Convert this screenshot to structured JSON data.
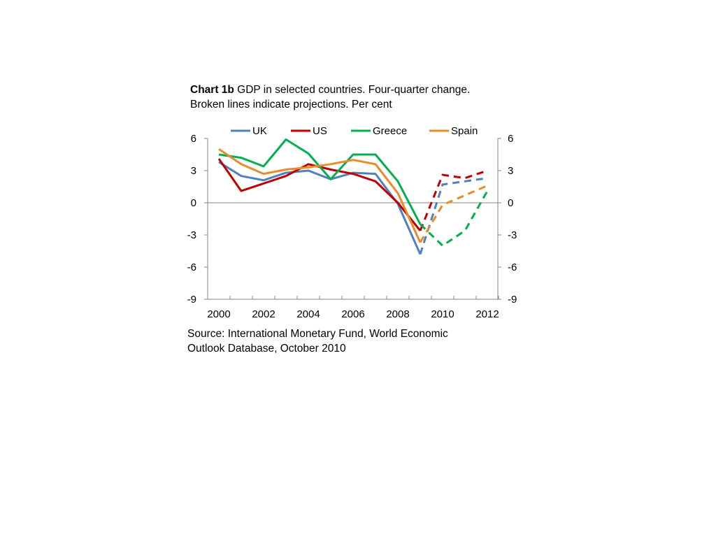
{
  "title": {
    "bold": "Chart 1b",
    "rest": " GDP in selected countries. Four-quarter change.",
    "line2": "Broken lines indicate projections. Per cent"
  },
  "source": {
    "line1": "Source:  International Monetary Fund, World Economic",
    "line2": "Outlook Database, October 2010"
  },
  "chart_data": {
    "type": "line",
    "ylim": [
      -9,
      6
    ],
    "yticks": [
      "6",
      "3",
      "0",
      "-3",
      "-6",
      "-9"
    ],
    "yticks_right": [
      "6",
      "3",
      "0",
      "-3",
      "-6",
      "-9"
    ],
    "xlim": [
      2000,
      2012
    ],
    "xtick_labels": [
      "2000",
      "2002",
      "2004",
      "2006",
      "2008",
      "2010",
      "2012"
    ],
    "grid": false,
    "legend_position": "top",
    "projection_note": "dashed segments are projections",
    "series": [
      {
        "name": "UK",
        "color": "#4f81bd",
        "actual": [
          [
            2000,
            3.8
          ],
          [
            2001,
            2.5
          ],
          [
            2002,
            2.1
          ],
          [
            2003,
            2.8
          ],
          [
            2004,
            3.0
          ],
          [
            2005,
            2.2
          ],
          [
            2006,
            2.8
          ],
          [
            2007,
            2.7
          ],
          [
            2008,
            -0.1
          ],
          [
            2009,
            -4.8
          ]
        ],
        "projection": [
          [
            2009,
            -4.8
          ],
          [
            2010,
            1.7
          ],
          [
            2011,
            2.0
          ],
          [
            2012,
            2.3
          ]
        ]
      },
      {
        "name": "US",
        "color": "#c00000",
        "actual": [
          [
            2000,
            4.1
          ],
          [
            2001,
            1.1
          ],
          [
            2002,
            1.8
          ],
          [
            2003,
            2.5
          ],
          [
            2004,
            3.6
          ],
          [
            2005,
            3.1
          ],
          [
            2006,
            2.7
          ],
          [
            2007,
            2.0
          ],
          [
            2008,
            0.0
          ],
          [
            2009,
            -2.6
          ]
        ],
        "projection": [
          [
            2009,
            -2.6
          ],
          [
            2010,
            2.6
          ],
          [
            2011,
            2.3
          ],
          [
            2012,
            3.0
          ]
        ]
      },
      {
        "name": "Greece",
        "color": "#00b050",
        "actual": [
          [
            2000,
            4.5
          ],
          [
            2001,
            4.2
          ],
          [
            2002,
            3.4
          ],
          [
            2003,
            5.9
          ],
          [
            2004,
            4.6
          ],
          [
            2005,
            2.2
          ],
          [
            2006,
            4.5
          ],
          [
            2007,
            4.5
          ],
          [
            2008,
            2.0
          ],
          [
            2009,
            -2.0
          ]
        ],
        "projection": [
          [
            2009,
            -2.0
          ],
          [
            2010,
            -4.0
          ],
          [
            2011,
            -2.6
          ],
          [
            2012,
            1.1
          ]
        ]
      },
      {
        "name": "Spain",
        "color": "#e98b2a",
        "actual": [
          [
            2000,
            5.0
          ],
          [
            2001,
            3.6
          ],
          [
            2002,
            2.7
          ],
          [
            2003,
            3.1
          ],
          [
            2004,
            3.3
          ],
          [
            2005,
            3.6
          ],
          [
            2006,
            4.0
          ],
          [
            2007,
            3.6
          ],
          [
            2008,
            0.9
          ],
          [
            2009,
            -3.7
          ]
        ],
        "projection": [
          [
            2009,
            -3.7
          ],
          [
            2010,
            -0.2
          ],
          [
            2011,
            0.7
          ],
          [
            2012,
            1.6
          ]
        ]
      }
    ]
  }
}
